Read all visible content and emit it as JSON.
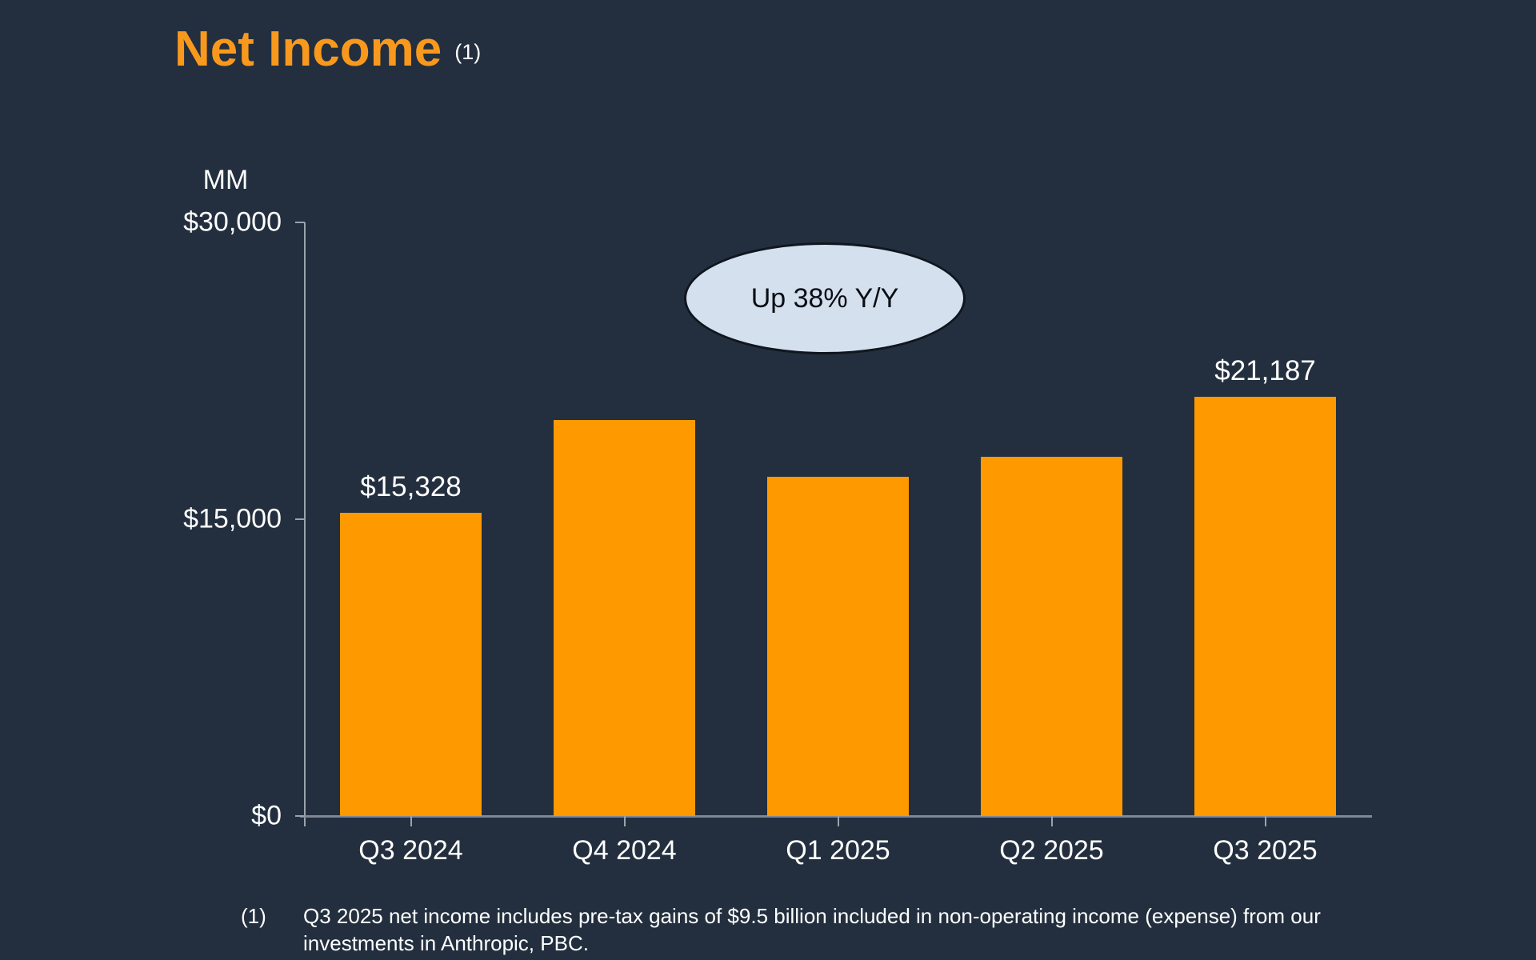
{
  "colors": {
    "background": "#232F3E",
    "accent_orange": "#F8991D",
    "bar_orange": "#FF9900",
    "text_white": "#FFFFFF",
    "callout_fill": "#D5E0EE",
    "callout_border": "#10161F"
  },
  "title": {
    "text": "Net Income",
    "footnote_ref": "(1)"
  },
  "chart_data": {
    "type": "bar",
    "title": "Net Income",
    "unit_label": "MM",
    "categories": [
      "Q3 2024",
      "Q4 2024",
      "Q1 2025",
      "Q2 2025",
      "Q3 2025"
    ],
    "values": [
      15328,
      20004,
      17127,
      18164,
      21187
    ],
    "data_labels": [
      "$15,328",
      "",
      "",
      "",
      "$21,187"
    ],
    "y_ticks": [
      {
        "value": 30000,
        "label": "$30,000"
      },
      {
        "value": 15000,
        "label": "$15,000"
      },
      {
        "value": 0,
        "label": "$0"
      }
    ],
    "ylim": [
      0,
      30000
    ],
    "grid": false,
    "legend": "none",
    "bar_color": "#FF9900",
    "annotation": {
      "text": "Up 38% Y/Y"
    }
  },
  "footnote": {
    "marker": "(1)",
    "text": "Q3 2025 net income includes pre-tax gains of $9.5 billion included in non-operating income (expense) from our investments in Anthropic, PBC."
  }
}
